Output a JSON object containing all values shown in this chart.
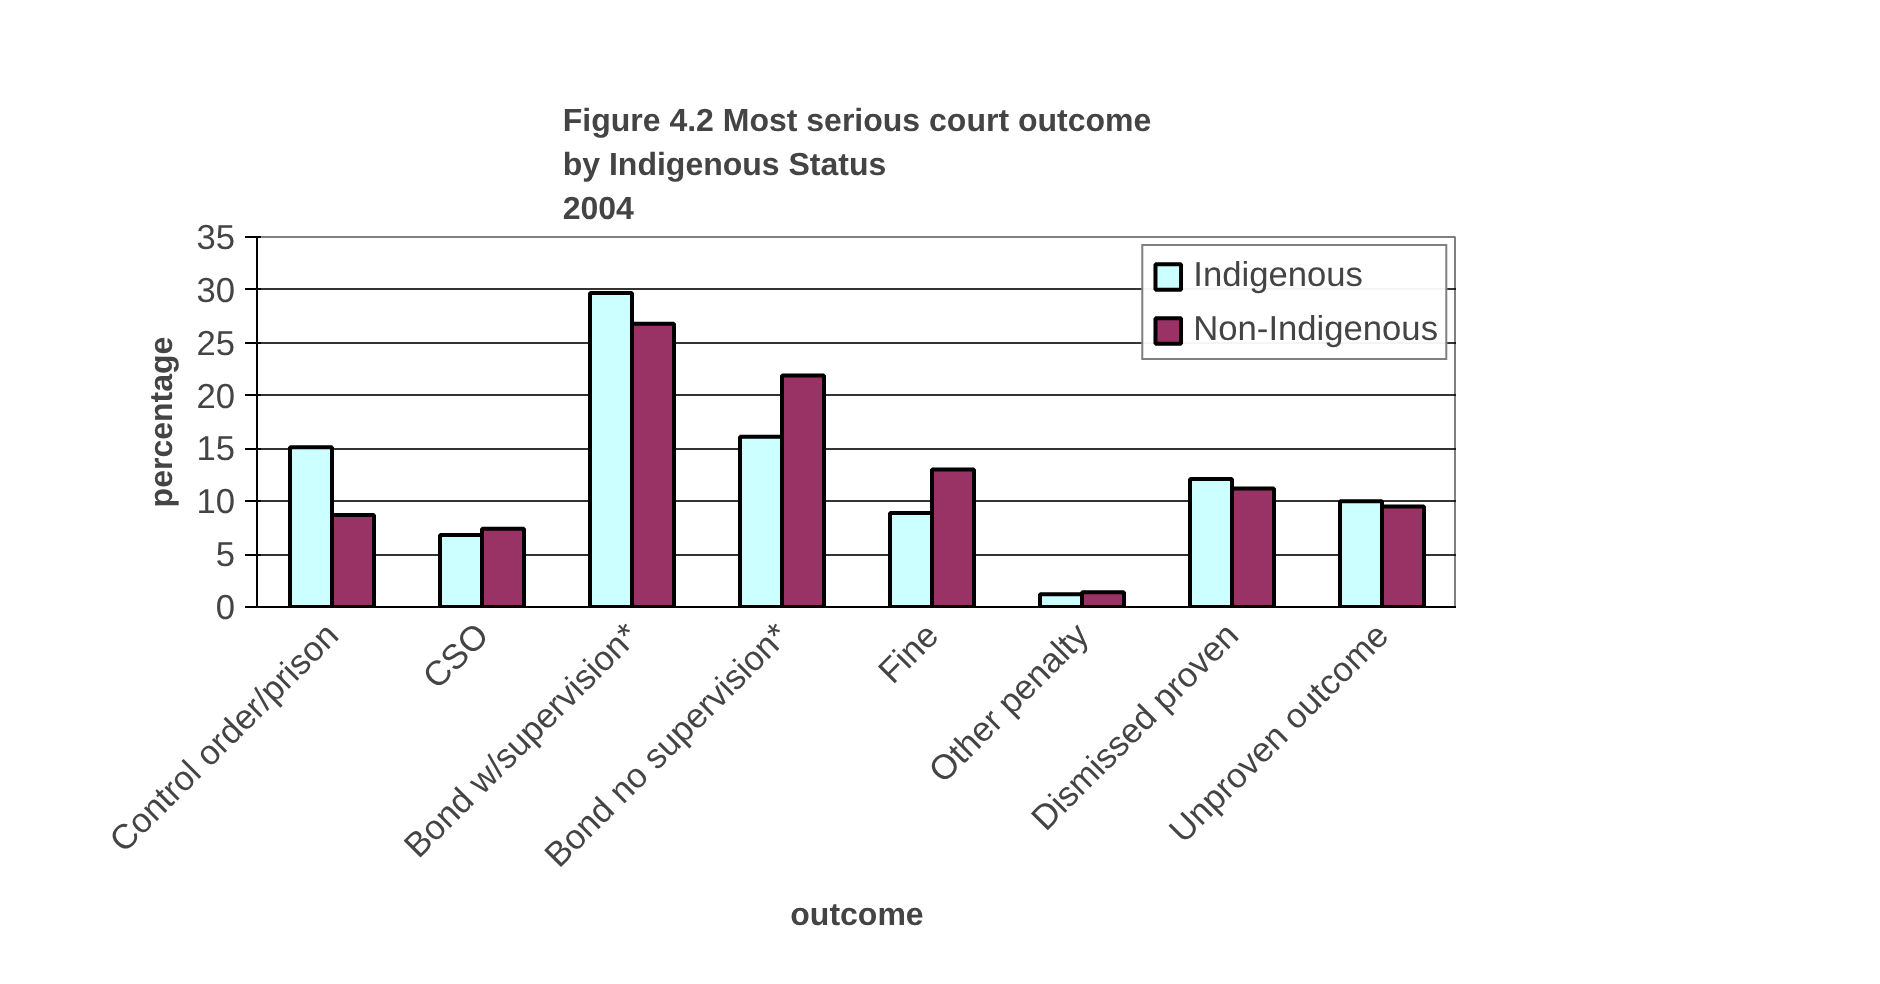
{
  "chart_data": {
    "type": "bar",
    "title": "Figure 4.2 Most serious court outcome\nby Indigenous Status\n2004",
    "xlabel": "outcome",
    "ylabel": "percentage",
    "categories": [
      "Control order/prison",
      "CSO",
      "Bond w/supervision*",
      "Bond no supervision*",
      "Fine",
      "Other penalty",
      "Dismissed proven",
      "Unproven outcome"
    ],
    "series": [
      {
        "name": "Indigenous",
        "color": "#ccffff",
        "values": [
          15.1,
          6.8,
          29.7,
          16.1,
          8.9,
          1.2,
          12.1,
          10.0
        ]
      },
      {
        "name": "Non-Indigenous",
        "color": "#993366",
        "values": [
          8.7,
          7.4,
          26.8,
          21.9,
          13.0,
          1.4,
          11.2,
          9.5
        ]
      }
    ],
    "ylim": [
      0,
      35
    ],
    "yticks": [
      0,
      5,
      10,
      15,
      20,
      25,
      30,
      35
    ],
    "grid": "y",
    "legend": "top right"
  }
}
